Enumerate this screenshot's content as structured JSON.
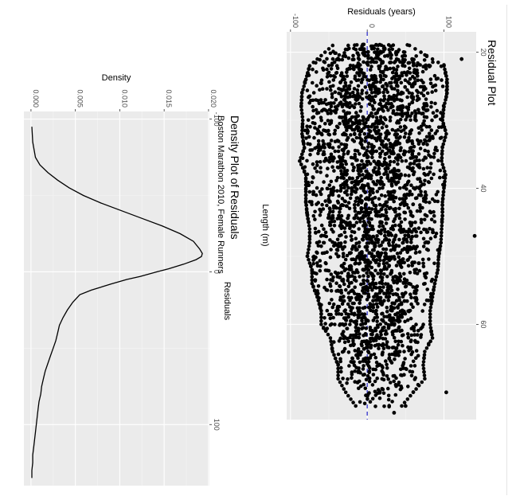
{
  "chart_data": [
    {
      "id": "residual-plot",
      "type": "scatter",
      "orientation": "rotated-90-clockwise",
      "title": "Residual Plot",
      "xlabel": "Length (m)",
      "ylabel": "Residuals (years)",
      "xlim": [
        17,
        74
      ],
      "ylim": [
        -105,
        142
      ],
      "xticks": [
        20,
        40,
        60
      ],
      "yticks": [
        -100,
        0,
        100
      ],
      "xtick_labels": [
        "20",
        "40",
        "60"
      ],
      "ytick_labels": [
        "-100",
        "0",
        "100"
      ],
      "reference_line": {
        "y": 0,
        "style": "dashed",
        "color": "#3333cc"
      },
      "point_color": "#000000",
      "background": "#ebebeb",
      "grid": true,
      "points_x": [
        19,
        22,
        24,
        26,
        28,
        30,
        32,
        34,
        36,
        38,
        40,
        42,
        44,
        46,
        48,
        50,
        52,
        54,
        56,
        58,
        60,
        62,
        64,
        66,
        68,
        70,
        72
      ],
      "points_min": [
        -45,
        -75,
        -80,
        -85,
        -86,
        -84,
        -85,
        -82,
        -88,
        -80,
        -80,
        -80,
        -78,
        -75,
        -75,
        -78,
        -72,
        -72,
        -65,
        -60,
        -60,
        -48,
        -45,
        -38,
        -38,
        -28,
        -15
      ],
      "points_max": [
        55,
        100,
        104,
        104,
        100,
        98,
        103,
        98,
        97,
        102,
        100,
        98,
        98,
        97,
        96,
        93,
        92,
        88,
        85,
        82,
        82,
        85,
        75,
        73,
        75,
        60,
        45
      ],
      "outliers": [
        {
          "x": 21,
          "y": 123
        },
        {
          "x": 47,
          "y": 140
        },
        {
          "x": 70,
          "y": 103
        },
        {
          "x": 72,
          "y": 50
        },
        {
          "x": 73,
          "y": 35
        }
      ]
    },
    {
      "id": "density-plot",
      "type": "line",
      "orientation": "rotated-90-clockwise",
      "title": "Density Plot of Residuals",
      "subtitle": "Boston Marathon 2010, Female Runners",
      "xlabel": "Residuals",
      "ylabel": "Density",
      "xlim": [
        -105,
        140
      ],
      "ylim": [
        -0.0008,
        0.0201
      ],
      "xticks": [
        -100,
        0,
        100
      ],
      "yticks": [
        0.0,
        0.005,
        0.01,
        0.015,
        0.02
      ],
      "xtick_labels": [
        "-100",
        "0",
        "100"
      ],
      "ytick_labels": [
        "0.000",
        "0.005",
        "0.010",
        "0.015",
        "0.020"
      ],
      "line_color": "#000000",
      "background": "#ebebeb",
      "grid": true,
      "x": [
        -95,
        -85,
        -75,
        -70,
        -65,
        -60,
        -55,
        -50,
        -45,
        -40,
        -35,
        -30,
        -25,
        -20,
        -15,
        -12,
        -10,
        -8,
        -5,
        -2,
        0,
        3,
        5,
        8,
        12,
        15,
        20,
        25,
        30,
        35,
        40,
        45,
        50,
        55,
        60,
        65,
        70,
        75,
        80,
        85,
        90,
        95,
        100,
        105,
        110,
        115,
        120,
        125,
        130,
        135
      ],
      "y": [
        0.0001,
        0.0002,
        0.0005,
        0.001,
        0.0019,
        0.003,
        0.0043,
        0.0059,
        0.0079,
        0.0102,
        0.0125,
        0.0148,
        0.0168,
        0.0183,
        0.019,
        0.0193,
        0.0192,
        0.0186,
        0.0172,
        0.0155,
        0.0142,
        0.0123,
        0.0108,
        0.009,
        0.0068,
        0.0055,
        0.0047,
        0.0041,
        0.0036,
        0.0032,
        0.003,
        0.0028,
        0.0025,
        0.0022,
        0.0019,
        0.0016,
        0.0014,
        0.0012,
        0.0011,
        0.0009,
        0.0008,
        0.0007,
        0.0006,
        0.0005,
        0.0004,
        0.0003,
        0.0002,
        0.0002,
        0.0001,
        0.0001
      ]
    }
  ]
}
